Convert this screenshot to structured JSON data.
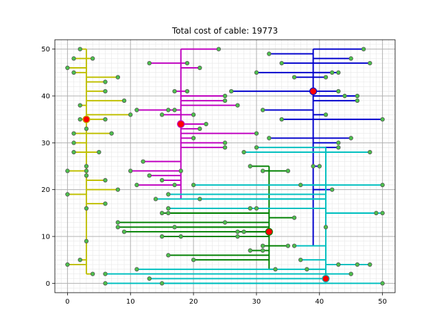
{
  "chart_data": {
    "type": "scatter",
    "title": "Total cost of cable: 19773",
    "xlabel": "",
    "ylabel": "",
    "xlim": [
      -2,
      52
    ],
    "ylim": [
      -2,
      52
    ],
    "xticks": [
      0,
      10,
      20,
      30,
      40,
      50
    ],
    "yticks": [
      0,
      10,
      20,
      30,
      40,
      50
    ],
    "grid": true,
    "minor_grid": true,
    "hubs": [
      {
        "x": 3,
        "y": 35,
        "color": "#bfbf00"
      },
      {
        "x": 18,
        "y": 34,
        "color": "#bf00bf"
      },
      {
        "x": 39,
        "y": 41,
        "color": "#0000cc"
      },
      {
        "x": 32,
        "y": 11,
        "color": "#008000"
      },
      {
        "x": 41,
        "y": 1,
        "color": "#00bfbf"
      }
    ],
    "series": [
      {
        "color": "#bfbf00",
        "trunk": {
          "x": 3,
          "y_min": 2,
          "y_max": 50
        },
        "points": [
          [
            2,
            50
          ],
          [
            1,
            48
          ],
          [
            4,
            48
          ],
          [
            0,
            46
          ],
          [
            1,
            45
          ],
          [
            6,
            43
          ],
          [
            8,
            44
          ],
          [
            6,
            41
          ],
          [
            9,
            39
          ],
          [
            2,
            38
          ],
          [
            3,
            35
          ],
          [
            2,
            35
          ],
          [
            6,
            35
          ],
          [
            10,
            36
          ],
          [
            3,
            33
          ],
          [
            1,
            32
          ],
          [
            7,
            32
          ],
          [
            1,
            30
          ],
          [
            1,
            28
          ],
          [
            5,
            28
          ],
          [
            3,
            25
          ],
          [
            3,
            24
          ],
          [
            0,
            24
          ],
          [
            3,
            23
          ],
          [
            6,
            22
          ],
          [
            0,
            19
          ],
          [
            8,
            20
          ],
          [
            6,
            17
          ],
          [
            3,
            16
          ],
          [
            3,
            9
          ],
          [
            2,
            5
          ],
          [
            0,
            4
          ],
          [
            4,
            2
          ]
        ]
      },
      {
        "color": "#bf00bf",
        "trunk": {
          "x": 18,
          "y_min": 18,
          "y_max": 50
        },
        "points": [
          [
            24,
            50
          ],
          [
            13,
            47
          ],
          [
            19,
            47
          ],
          [
            21,
            46
          ],
          [
            17,
            41
          ],
          [
            19,
            41
          ],
          [
            25,
            40
          ],
          [
            25,
            39
          ],
          [
            27,
            38
          ],
          [
            11,
            37
          ],
          [
            16,
            37
          ],
          [
            17,
            37
          ],
          [
            20,
            36
          ],
          [
            15,
            36
          ],
          [
            22,
            34
          ],
          [
            21,
            33
          ],
          [
            30,
            32
          ],
          [
            20,
            31
          ],
          [
            25,
            30
          ],
          [
            25,
            29
          ],
          [
            12,
            26
          ],
          [
            10,
            24
          ],
          [
            18,
            24
          ],
          [
            13,
            23
          ],
          [
            15,
            22
          ],
          [
            17,
            21
          ],
          [
            11,
            21
          ]
        ]
      },
      {
        "color": "#0000cc",
        "trunk": {
          "x": 39,
          "y_min": 8,
          "y_max": 50
        },
        "points": [
          [
            47,
            50
          ],
          [
            32,
            49
          ],
          [
            45,
            48
          ],
          [
            34,
            47
          ],
          [
            48,
            47
          ],
          [
            30,
            45
          ],
          [
            42,
            45
          ],
          [
            43,
            45
          ],
          [
            36,
            44
          ],
          [
            41,
            44
          ],
          [
            43,
            41
          ],
          [
            26,
            41
          ],
          [
            44,
            40
          ],
          [
            46,
            40
          ],
          [
            46,
            39
          ],
          [
            31,
            37
          ],
          [
            41,
            36
          ],
          [
            34,
            35
          ],
          [
            50,
            35
          ],
          [
            32,
            31
          ],
          [
            45,
            31
          ],
          [
            43,
            30
          ],
          [
            43,
            29
          ],
          [
            39,
            25
          ],
          [
            40,
            25
          ],
          [
            42,
            20
          ]
        ]
      },
      {
        "color": "#008000",
        "trunk": {
          "x": 32,
          "y_min": 3,
          "y_max": 25
        },
        "points": [
          [
            29,
            25
          ],
          [
            31,
            24
          ],
          [
            35,
            24
          ],
          [
            29,
            16
          ],
          [
            16,
            15
          ],
          [
            15,
            15
          ],
          [
            36,
            14
          ],
          [
            8,
            13
          ],
          [
            25,
            13
          ],
          [
            8,
            12
          ],
          [
            17,
            12
          ],
          [
            28,
            11
          ],
          [
            9,
            11
          ],
          [
            27,
            11
          ],
          [
            15,
            10
          ],
          [
            18,
            10
          ],
          [
            27,
            10
          ],
          [
            31,
            8
          ],
          [
            35,
            8
          ],
          [
            29,
            7
          ],
          [
            31,
            7
          ],
          [
            16,
            6
          ],
          [
            20,
            5
          ],
          [
            33,
            3
          ]
        ]
      },
      {
        "color": "#00bfbf",
        "trunk": {
          "x": 41,
          "y_min": 1,
          "y_max": 29
        },
        "points": [
          [
            30,
            29
          ],
          [
            28,
            28
          ],
          [
            48,
            28
          ],
          [
            37,
            21
          ],
          [
            50,
            21
          ],
          [
            20,
            21
          ],
          [
            16,
            19
          ],
          [
            14,
            18
          ],
          [
            21,
            18
          ],
          [
            16,
            16
          ],
          [
            30,
            16
          ],
          [
            49,
            15
          ],
          [
            50,
            15
          ],
          [
            41,
            12
          ],
          [
            36,
            8
          ],
          [
            37,
            5
          ],
          [
            43,
            4
          ],
          [
            46,
            4
          ],
          [
            48,
            4
          ],
          [
            11,
            3
          ],
          [
            38,
            3
          ],
          [
            6,
            2
          ],
          [
            45,
            2
          ],
          [
            13,
            1
          ],
          [
            6,
            0
          ],
          [
            15,
            0
          ],
          [
            50,
            0
          ]
        ]
      }
    ]
  }
}
